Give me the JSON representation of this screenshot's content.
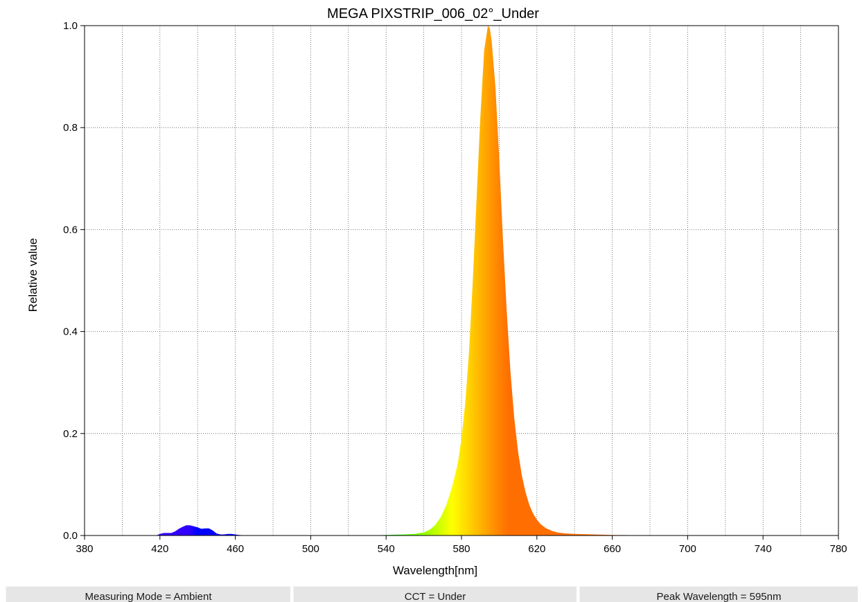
{
  "chart_data": {
    "type": "area",
    "title": "MEGA PIXSTRIP_006_02°_Under",
    "xlabel": "Wavelength[nm]",
    "ylabel": "Relative value",
    "xlim": [
      380,
      780
    ],
    "ylim": [
      0,
      1.0
    ],
    "x_ticks": [
      "380",
      "420",
      "460",
      "500",
      "540",
      "580",
      "620",
      "660",
      "700",
      "740",
      "780"
    ],
    "y_ticks": [
      "0.0",
      "0.2",
      "0.4",
      "0.6",
      "0.8",
      "1.0"
    ],
    "grid": true,
    "fill": "spectral color by wavelength",
    "series": [
      {
        "x": [
          380,
          418,
          420,
          422,
          424,
          426,
          428,
          430,
          432,
          434,
          436,
          438,
          440,
          442,
          444,
          446,
          448,
          450,
          452,
          454,
          456,
          458,
          460,
          462,
          464,
          470,
          500,
          530,
          540,
          550,
          555,
          560,
          563,
          566,
          569,
          572,
          575,
          578,
          580,
          582,
          584,
          586,
          588,
          590,
          592,
          594,
          595,
          596,
          598,
          600,
          602,
          604,
          606,
          608,
          610,
          612,
          614,
          616,
          618,
          620,
          622,
          625,
          628,
          631,
          635,
          640,
          645,
          650,
          655,
          660,
          665,
          670,
          680,
          690,
          700,
          720,
          780
        ],
        "y": [
          0,
          0,
          0.003,
          0.005,
          0.005,
          0.005,
          0.008,
          0.013,
          0.017,
          0.02,
          0.02,
          0.018,
          0.016,
          0.013,
          0.014,
          0.014,
          0.01,
          0.004,
          0.002,
          0.002,
          0.003,
          0.003,
          0.002,
          0.001,
          0.0005,
          0,
          0,
          0,
          0.001,
          0.002,
          0.003,
          0.006,
          0.011,
          0.02,
          0.036,
          0.06,
          0.095,
          0.14,
          0.19,
          0.26,
          0.36,
          0.5,
          0.66,
          0.82,
          0.95,
          1.0,
          0.995,
          0.97,
          0.88,
          0.74,
          0.58,
          0.44,
          0.32,
          0.23,
          0.165,
          0.118,
          0.085,
          0.06,
          0.043,
          0.031,
          0.022,
          0.014,
          0.009,
          0.006,
          0.004,
          0.003,
          0.0025,
          0.002,
          0.0015,
          0.001,
          0.0008,
          0.0006,
          0.0003,
          0.0002,
          0.0001,
          0,
          0
        ]
      }
    ]
  },
  "status_bar": {
    "measuring_mode": "Measuring Mode = Ambient",
    "cct": "CCT = Under",
    "peak_wavelength": "Peak Wavelength = 595nm"
  }
}
